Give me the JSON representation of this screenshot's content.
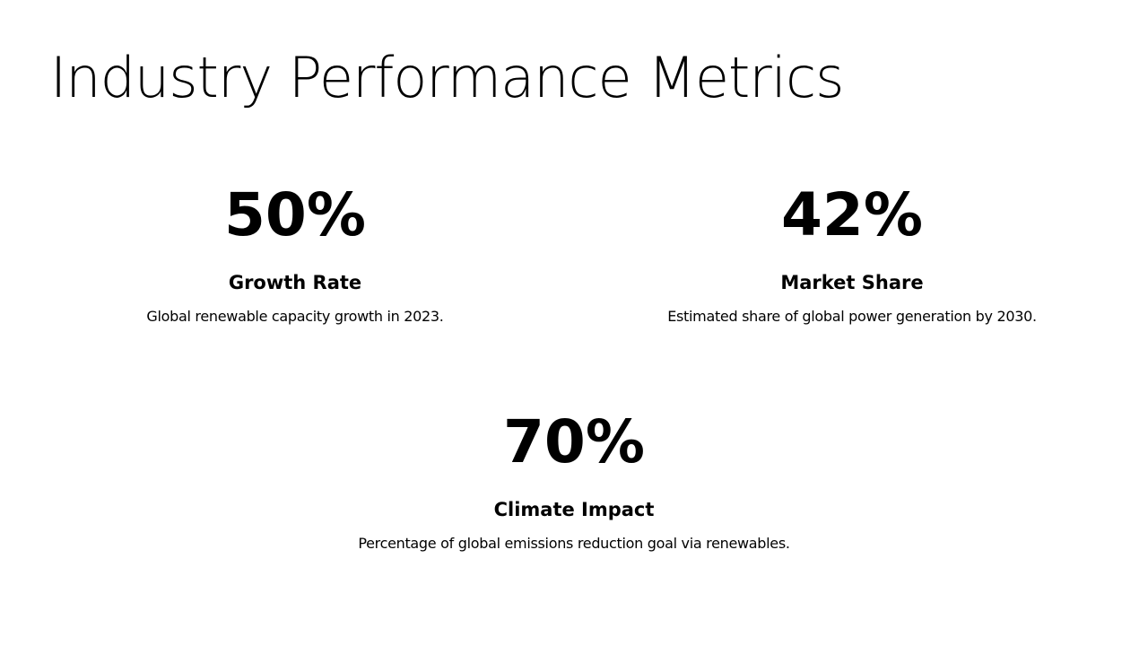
{
  "header": {
    "title": "Industry Performance Metrics"
  },
  "metrics": [
    {
      "value": "50%",
      "label": "Growth Rate",
      "description": "Global renewable capacity growth in 2023."
    },
    {
      "value": "42%",
      "label": "Market Share",
      "description": "Estimated share of global power generation by 2030."
    },
    {
      "value": "70%",
      "label": "Climate Impact",
      "description": "Percentage of global emissions reduction goal via renewables."
    }
  ]
}
